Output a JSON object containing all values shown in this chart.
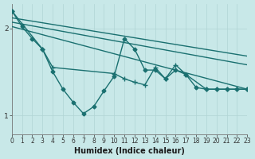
{
  "xlabel": "Humidex (Indice chaleur)",
  "bg_color": "#c8e8e8",
  "line_color": "#1a7070",
  "x_ticks": [
    0,
    1,
    2,
    3,
    4,
    5,
    6,
    7,
    8,
    9,
    10,
    11,
    12,
    13,
    14,
    15,
    16,
    17,
    18,
    19,
    20,
    21,
    22,
    23
  ],
  "y_ticks": [
    1,
    2
  ],
  "xlim": [
    0,
    23
  ],
  "ylim": [
    0.78,
    2.28
  ],
  "series": [
    {
      "x": [
        0,
        1,
        2,
        3,
        4,
        5,
        6,
        7,
        8,
        9,
        10,
        11,
        12,
        13,
        14,
        15,
        16,
        17,
        18,
        19,
        20,
        21,
        22,
        23
      ],
      "y": [
        2.2,
        2.02,
        1.88,
        1.76,
        1.5,
        1.3,
        1.15,
        1.02,
        1.1,
        1.28,
        1.45,
        1.88,
        1.76,
        1.52,
        1.52,
        1.42,
        1.52,
        1.47,
        1.32,
        1.3,
        1.3,
        1.3,
        1.3,
        1.3
      ],
      "marker": "D",
      "markersize": 2.5,
      "linewidth": 1.0
    },
    {
      "x": [
        0,
        3,
        4,
        10,
        11,
        12,
        13,
        14,
        15,
        16,
        17,
        19,
        20,
        21,
        22,
        23
      ],
      "y": [
        2.2,
        1.76,
        1.55,
        1.48,
        1.42,
        1.38,
        1.35,
        1.55,
        1.42,
        1.58,
        1.47,
        1.3,
        1.3,
        1.3,
        1.3,
        1.3
      ],
      "marker": "+",
      "markersize": 4,
      "linewidth": 1.0
    },
    {
      "x": [
        0,
        23
      ],
      "y": [
        2.12,
        1.68
      ],
      "marker": null,
      "markersize": 0,
      "linewidth": 1.0
    },
    {
      "x": [
        0,
        23
      ],
      "y": [
        2.07,
        1.58
      ],
      "marker": null,
      "markersize": 0,
      "linewidth": 1.0
    },
    {
      "x": [
        0,
        23
      ],
      "y": [
        2.02,
        1.3
      ],
      "marker": null,
      "markersize": 0,
      "linewidth": 1.0
    }
  ],
  "grid_color": "#b0d4d4",
  "grid_linewidth": 0.5,
  "tick_fontsize": 5.5,
  "xlabel_fontsize": 7
}
